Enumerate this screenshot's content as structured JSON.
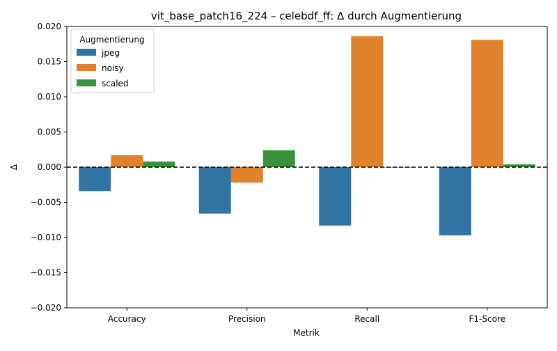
{
  "chart_data": {
    "type": "bar",
    "title": "vit_base_patch16_224 – celebdf_ff: Δ durch Augmentierung",
    "xlabel": "Metrik",
    "ylabel": "Δ",
    "categories": [
      "Accuracy",
      "Precision",
      "Recall",
      "F1-Score"
    ],
    "ylim": [
      -0.02,
      0.02
    ],
    "yticks": [
      -0.02,
      -0.015,
      -0.01,
      -0.005,
      0.0,
      0.005,
      0.01,
      0.015,
      0.02
    ],
    "ytick_labels": [
      "−0.020",
      "−0.015",
      "−0.010",
      "−0.005",
      "0.000",
      "0.005",
      "0.010",
      "0.015",
      "0.020"
    ],
    "grid": false,
    "reference_line": {
      "y": 0,
      "style": "dashed",
      "color": "#000000"
    },
    "legend": {
      "title": "Augmentierung",
      "position": "top-left"
    },
    "series": [
      {
        "name": "jpeg",
        "color": "#3274a1",
        "values": [
          -0.0034,
          -0.0066,
          -0.0083,
          -0.0097
        ]
      },
      {
        "name": "noisy",
        "color": "#e1812c",
        "values": [
          0.0017,
          -0.0022,
          0.0186,
          0.0181
        ]
      },
      {
        "name": "scaled",
        "color": "#3a923a",
        "values": [
          0.0008,
          0.0024,
          0.0,
          0.0004
        ]
      }
    ]
  }
}
